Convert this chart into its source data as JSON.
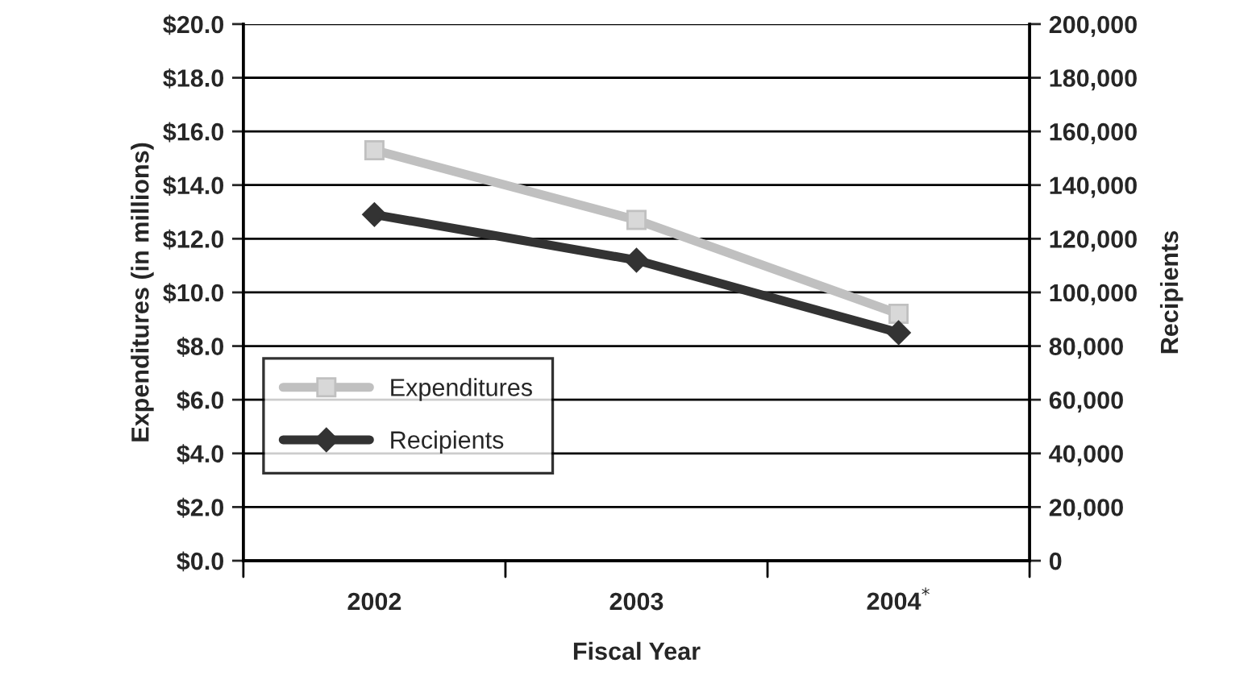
{
  "chart_data": {
    "type": "line",
    "xlabel": "Fiscal Year",
    "ylabel": "Expenditures (in millions)",
    "y2label": "Recipients",
    "categories": [
      "2002",
      "2003",
      "2004$^{*}$"
    ],
    "series": [
      {
        "name": "Expenditures",
        "color": "#c0c0c0",
        "values": [
          15.3,
          12.7,
          9.2
        ],
        "marker": "square"
      },
      {
        "name": "Recipients",
        "color": "#333333",
        "values": [
          129000,
          112000,
          85000
        ],
        "marker": "diamond",
        "axis": "y2"
      }
    ],
    "ylim": [
      0,
      20
    ],
    "yticks": [
      {
        "value": 0,
        "label": "$0.0"
      },
      {
        "value": 2,
        "label": "$2.0"
      },
      {
        "value": 4,
        "label": "$4.0"
      },
      {
        "value": 6,
        "label": "$6.0"
      },
      {
        "value": 8,
        "label": "$8.0"
      },
      {
        "value": 10,
        "label": "$10.0"
      },
      {
        "value": 12,
        "label": "$12.0"
      },
      {
        "value": 14,
        "label": "$14.0"
      },
      {
        "value": 16,
        "label": "$16.0"
      },
      {
        "value": 18,
        "label": "$18.0"
      },
      {
        "value": 20,
        "label": "$20.0"
      }
    ],
    "y2lim": [
      0,
      200000
    ],
    "y2ticks": [
      0,
      {
        "value": 20000,
        "label": "20,000"
      },
      {
        "value": 40000,
        "label": "40,000"
      },
      {
        "value": 60000,
        "label": "60,000"
      },
      {
        "value": 80000,
        "label": "80,000"
      },
      {
        "value": 100000,
        "label": "100,000"
      },
      {
        "value": 120000,
        "label": "120,000"
      },
      {
        "value": 140000,
        "label": "140,000"
      },
      {
        "value": 160000,
        "label": "160,000"
      },
      {
        "value": 180000,
        "label": "180,000"
      },
      {
        "value": 200000,
        "label": "200,000"
      }
    ],
    "grid": "y",
    "legend": "left",
    "line_style": "solid"
  }
}
